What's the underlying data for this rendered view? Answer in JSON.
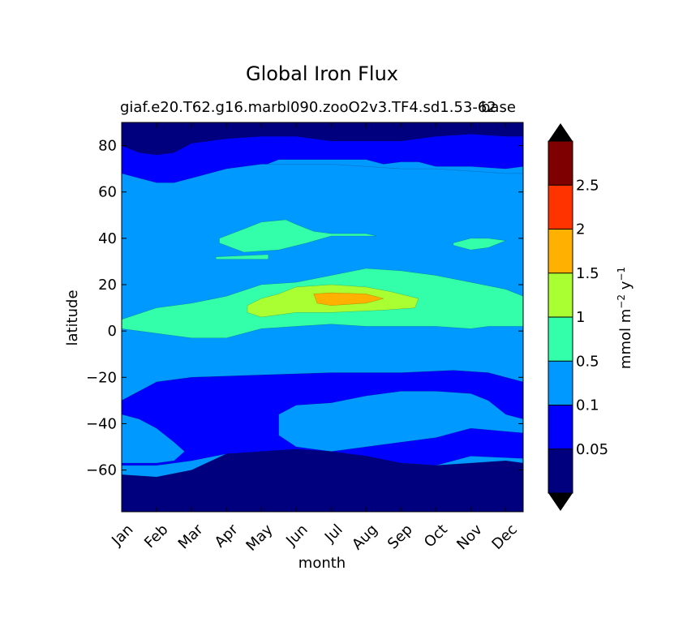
{
  "chart_data": {
    "type": "contour",
    "title": "Global Iron Flux",
    "subtitle": "giaf.e20.T62.g16.marbl090.zooO2v3.TF4.sd1.53-62",
    "subtitle_overlap": "base",
    "xlabel": "month",
    "ylabel": "latitude",
    "x_categories": [
      "Jan",
      "Feb",
      "Mar",
      "Apr",
      "May",
      "Jun",
      "Jul",
      "Aug",
      "Sep",
      "Oct",
      "Nov",
      "Dec"
    ],
    "y_ticks": [
      "80",
      "60",
      "40",
      "20",
      "0",
      "−20",
      "−40",
      "−60"
    ],
    "y_tick_values": [
      80,
      60,
      40,
      20,
      0,
      -20,
      -40,
      -60
    ],
    "ylim": [
      -78,
      90
    ],
    "colorbar": {
      "label_main": "mmol m",
      "label_sup1": "−2",
      "label_mid": "  y",
      "label_sup2": "−1",
      "levels": [
        0.05,
        0.1,
        0.5,
        1,
        1.5,
        2,
        2.5
      ],
      "tick_labels": [
        "0.05",
        "0.1",
        "0.5",
        "1",
        "1.5",
        "2",
        "2.5"
      ],
      "colors": [
        "#00007f",
        "#0000ff",
        "#0099ff",
        "#33ffaa",
        "#aaff33",
        "#ffb000",
        "#ff3300",
        "#7f0000"
      ],
      "extend": "both",
      "under_color": "#000000",
      "over_color": "#000000"
    },
    "regions": [
      {
        "level": "high-lat N band",
        "color": "#0000ff",
        "pts": [
          [
            0,
            62
          ],
          [
            1,
            62
          ],
          [
            1.5,
            63
          ],
          [
            2,
            63
          ],
          [
            2.5,
            66
          ],
          [
            3,
            68
          ],
          [
            3.5,
            70
          ],
          [
            4,
            71
          ],
          [
            4.5,
            74
          ],
          [
            5,
            74
          ],
          [
            6,
            74
          ],
          [
            7,
            74
          ],
          [
            7.5,
            72
          ],
          [
            8,
            73
          ],
          [
            8.5,
            73
          ],
          [
            9,
            71
          ],
          [
            10,
            71
          ],
          [
            11,
            70
          ],
          [
            11.5,
            71
          ],
          [
            11.5,
            90
          ],
          [
            0,
            90
          ]
        ]
      },
      {
        "level": "arctic",
        "color": "#00007f",
        "pts": [
          [
            0,
            90
          ],
          [
            0,
            80
          ],
          [
            0.5,
            77
          ],
          [
            1,
            76
          ],
          [
            1.5,
            77
          ],
          [
            2,
            81
          ],
          [
            3,
            83
          ],
          [
            4,
            84
          ],
          [
            5,
            84
          ],
          [
            6,
            82
          ],
          [
            7,
            82
          ],
          [
            8,
            82
          ],
          [
            9,
            84
          ],
          [
            10,
            85
          ],
          [
            11,
            84
          ],
          [
            11.5,
            84
          ],
          [
            11.5,
            90
          ]
        ]
      },
      {
        "level": "mid 0.1",
        "color": "#0099ff",
        "pts": [
          [
            0,
            68
          ],
          [
            0.5,
            66
          ],
          [
            1,
            64
          ],
          [
            1.5,
            64
          ],
          [
            2,
            66
          ],
          [
            2.5,
            68
          ],
          [
            3,
            70
          ],
          [
            4,
            72
          ],
          [
            5,
            72
          ],
          [
            6,
            72
          ],
          [
            7,
            71
          ],
          [
            8,
            70
          ],
          [
            9,
            70
          ],
          [
            10,
            69
          ],
          [
            11,
            68
          ],
          [
            11.5,
            68
          ],
          [
            11.5,
            -22
          ],
          [
            10.5,
            -18
          ],
          [
            9.5,
            -17
          ],
          [
            8,
            -18
          ],
          [
            6,
            -18
          ],
          [
            4,
            -19
          ],
          [
            2,
            -20
          ],
          [
            1,
            -22
          ],
          [
            0,
            -30
          ]
        ]
      },
      {
        "level": "equatorial 0.5",
        "color": "#33ffaa",
        "pts": [
          [
            0,
            5
          ],
          [
            1,
            10
          ],
          [
            2,
            12
          ],
          [
            3,
            15
          ],
          [
            4,
            20
          ],
          [
            5,
            21
          ],
          [
            6,
            24
          ],
          [
            7,
            27
          ],
          [
            8,
            26
          ],
          [
            9,
            24
          ],
          [
            10,
            21
          ],
          [
            11,
            18
          ],
          [
            11.5,
            15
          ],
          [
            11.5,
            2
          ],
          [
            10.5,
            2
          ],
          [
            10,
            1
          ],
          [
            9,
            2
          ],
          [
            8,
            2
          ],
          [
            7,
            2
          ],
          [
            6,
            3
          ],
          [
            5,
            2
          ],
          [
            4,
            1
          ],
          [
            3,
            -3
          ],
          [
            2,
            -3
          ],
          [
            1,
            -1
          ],
          [
            0,
            1
          ]
        ]
      },
      {
        "level": "north patch 0.5",
        "color": "#33ffaa",
        "pts": [
          [
            2.8,
            40
          ],
          [
            3.5,
            44
          ],
          [
            4,
            47
          ],
          [
            4.7,
            48
          ],
          [
            5,
            46
          ],
          [
            5.5,
            43
          ],
          [
            6,
            42
          ],
          [
            7,
            42
          ],
          [
            7.3,
            41
          ],
          [
            6,
            41
          ],
          [
            5.3,
            38
          ],
          [
            4.5,
            35
          ],
          [
            3.5,
            34
          ],
          [
            2.8,
            38
          ]
        ]
      },
      {
        "level": "sliver 0.5",
        "color": "#33ffaa",
        "pts": [
          [
            2.7,
            32
          ],
          [
            4.2,
            33
          ],
          [
            4.2,
            31
          ],
          [
            2.7,
            31
          ]
        ]
      },
      {
        "level": "nov patch 0.5",
        "color": "#33ffaa",
        "pts": [
          [
            9.5,
            38
          ],
          [
            10,
            40
          ],
          [
            10.5,
            40
          ],
          [
            11,
            39
          ],
          [
            10.5,
            36
          ],
          [
            10,
            35
          ],
          [
            9.5,
            37
          ]
        ]
      },
      {
        "level": "1.0 band",
        "color": "#aaff33",
        "pts": [
          [
            3.6,
            11
          ],
          [
            4,
            14
          ],
          [
            4.5,
            16
          ],
          [
            5,
            19
          ],
          [
            6,
            20
          ],
          [
            7,
            19
          ],
          [
            7.7,
            17
          ],
          [
            8.5,
            14
          ],
          [
            8.4,
            10
          ],
          [
            7.5,
            9
          ],
          [
            6,
            8
          ],
          [
            5,
            8
          ],
          [
            4,
            6
          ],
          [
            3.6,
            8
          ]
        ]
      },
      {
        "level": "1.5 core",
        "color": "#ffb000",
        "pts": [
          [
            5.5,
            16
          ],
          [
            6,
            16.5
          ],
          [
            7,
            16
          ],
          [
            7.5,
            14
          ],
          [
            7,
            12
          ],
          [
            6,
            11
          ],
          [
            5.6,
            12
          ]
        ]
      },
      {
        "level": "southern 0.05",
        "color": "#0000ff",
        "pts": [
          [
            0,
            -30
          ],
          [
            1,
            -22
          ],
          [
            2,
            -20
          ],
          [
            4,
            -19
          ],
          [
            6,
            -18
          ],
          [
            8,
            -18
          ],
          [
            9.5,
            -17
          ],
          [
            10.5,
            -18
          ],
          [
            11.5,
            -22
          ],
          [
            11.5,
            -55
          ],
          [
            10,
            -54
          ],
          [
            9,
            -58
          ],
          [
            8,
            -57
          ],
          [
            6,
            -55
          ],
          [
            5,
            -54
          ],
          [
            4,
            -53
          ],
          [
            3,
            -53
          ],
          [
            2,
            -56
          ],
          [
            1,
            -58
          ],
          [
            0,
            -58
          ]
        ]
      },
      {
        "level": "south patch 0.1",
        "color": "#0099ff",
        "pts": [
          [
            4.5,
            -36
          ],
          [
            5,
            -32
          ],
          [
            6,
            -31
          ],
          [
            7,
            -28
          ],
          [
            8,
            -26
          ],
          [
            9,
            -26
          ],
          [
            10,
            -27
          ],
          [
            10.5,
            -30
          ],
          [
            11,
            -36
          ],
          [
            11.5,
            -38
          ],
          [
            11.5,
            -44
          ],
          [
            10,
            -42
          ],
          [
            9,
            -46
          ],
          [
            8,
            -48
          ],
          [
            7,
            -50
          ],
          [
            6,
            -52
          ],
          [
            5,
            -50
          ],
          [
            4.5,
            -45
          ]
        ]
      },
      {
        "level": "SW patch 0.1",
        "color": "#0099ff",
        "pts": [
          [
            0,
            -36
          ],
          [
            0.5,
            -38
          ],
          [
            1,
            -42
          ],
          [
            1.5,
            -48
          ],
          [
            1.8,
            -52
          ],
          [
            1.5,
            -56
          ],
          [
            1,
            -57
          ],
          [
            0,
            -57
          ]
        ]
      },
      {
        "level": "antarctic 0.05",
        "color": "#00007f",
        "pts": [
          [
            0,
            -62
          ],
          [
            1,
            -63
          ],
          [
            2,
            -60
          ],
          [
            3,
            -53
          ],
          [
            4,
            -52
          ],
          [
            5,
            -51
          ],
          [
            6,
            -52
          ],
          [
            7,
            -54
          ],
          [
            8,
            -57
          ],
          [
            9,
            -58
          ],
          [
            10,
            -57
          ],
          [
            11,
            -56
          ],
          [
            11.5,
            -57
          ],
          [
            11.5,
            -78
          ],
          [
            0,
            -78
          ]
        ]
      }
    ]
  }
}
